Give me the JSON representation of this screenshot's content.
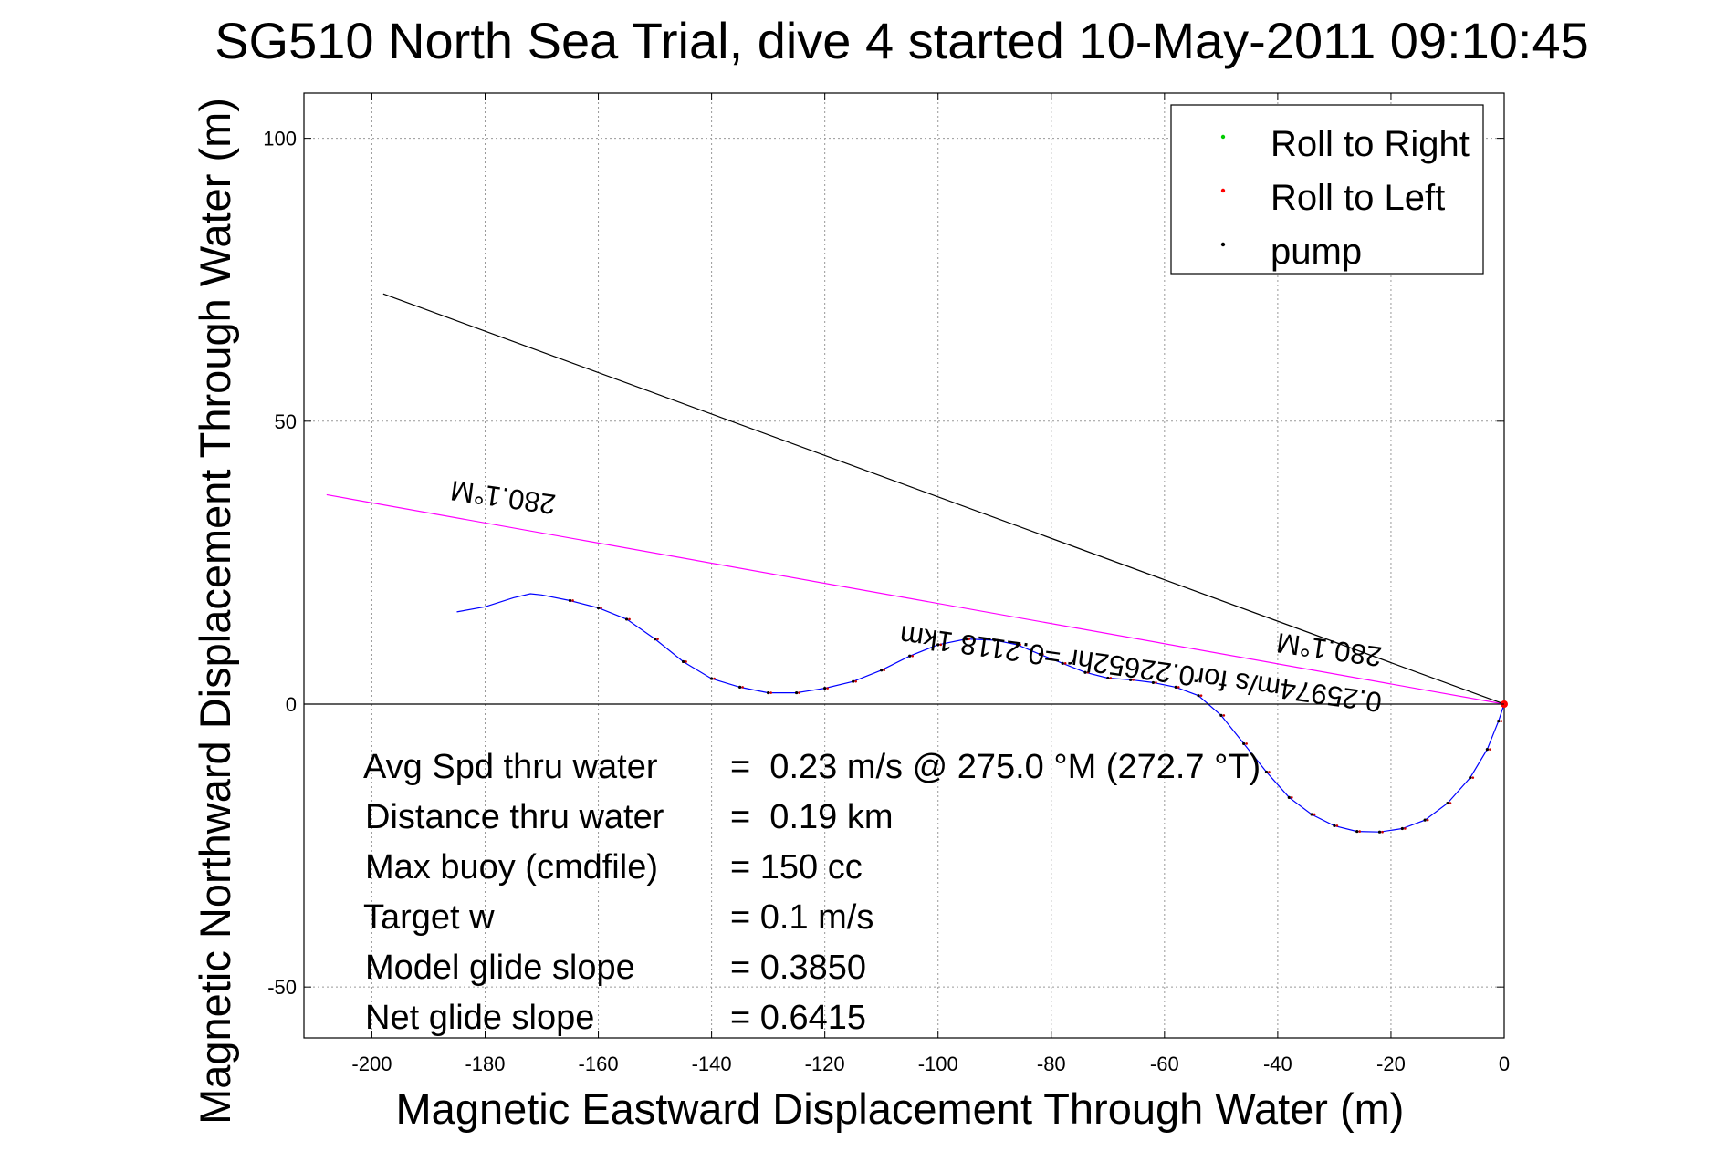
{
  "chart_data": {
    "type": "line",
    "title": "SG510 North Sea Trial, dive 4 started 10-May-2011 09:10:45",
    "xlabel": "Magnetic Eastward Displacement Through Water (m)",
    "ylabel": "Magnetic Northward Displacement Through Water (m)",
    "xlim": [
      -212,
      0
    ],
    "ylim": [
      -59,
      108
    ],
    "xticks": [
      -200,
      -180,
      -160,
      -140,
      -120,
      -100,
      -80,
      -60,
      -40,
      -20,
      0
    ],
    "yticks": [
      -50,
      0,
      50,
      100
    ],
    "xtick_labels": [
      "-200",
      "-180",
      "-160",
      "-140",
      "-120",
      "-100",
      "-80",
      "-60",
      "-40",
      "-20",
      "0"
    ],
    "ytick_labels": [
      "-50",
      "0",
      "50",
      "100"
    ],
    "grid": true,
    "legend_position": "top-right",
    "legend": [
      {
        "label": "Roll to Right",
        "color": "#00cc00"
      },
      {
        "label": "Roll to Left",
        "color": "#ff0000"
      },
      {
        "label": "pump",
        "color": "#000000"
      }
    ],
    "series": [
      {
        "type": "track",
        "color": "#0000ff",
        "points": [
          [
            0,
            0
          ],
          [
            -1,
            -3
          ],
          [
            -3,
            -8
          ],
          [
            -6,
            -13
          ],
          [
            -10,
            -17.5
          ],
          [
            -14,
            -20.5
          ],
          [
            -18,
            -22
          ],
          [
            -22,
            -22.6
          ],
          [
            -26,
            -22.5
          ],
          [
            -30,
            -21.5
          ],
          [
            -34,
            -19.5
          ],
          [
            -38,
            -16.5
          ],
          [
            -42,
            -12
          ],
          [
            -46,
            -7
          ],
          [
            -50,
            -2
          ],
          [
            -54,
            1.5
          ],
          [
            -58,
            3
          ],
          [
            -62,
            3.8
          ],
          [
            -66,
            4.3
          ],
          [
            -70,
            4.6
          ],
          [
            -74,
            5.6
          ],
          [
            -78,
            7.2
          ],
          [
            -82,
            8.8
          ],
          [
            -86,
            10.5
          ],
          [
            -90,
            11.3
          ],
          [
            -95,
            11.5
          ],
          [
            -100,
            10.5
          ],
          [
            -105,
            8.5
          ],
          [
            -110,
            6
          ],
          [
            -115,
            4
          ],
          [
            -120,
            2.8
          ],
          [
            -125,
            2
          ],
          [
            -130,
            2
          ],
          [
            -135,
            3
          ],
          [
            -140,
            4.5
          ],
          [
            -145,
            7.5
          ],
          [
            -150,
            11.5
          ],
          [
            -155,
            15
          ],
          [
            -160,
            17
          ],
          [
            -165,
            18.3
          ],
          [
            -170,
            19.3
          ],
          [
            -172,
            19.5
          ],
          [
            -175,
            18.8
          ],
          [
            -180,
            17.2
          ],
          [
            -185,
            16.3
          ]
        ]
      },
      {
        "type": "heading",
        "color": "#ff00ff",
        "x": [
          0,
          -208
        ],
        "y": [
          0,
          37
        ]
      },
      {
        "type": "displacement",
        "color": "#000000",
        "x": [
          0,
          -198
        ],
        "y": [
          0,
          72.5
        ]
      },
      {
        "type": "zero-line",
        "color": "#000000",
        "x": [
          0,
          -212
        ],
        "y": [
          0,
          0
        ]
      }
    ],
    "ship_marker": {
      "x": 0,
      "y": 0,
      "color": "#ff0000"
    },
    "annotations": {
      "heading_left": "280.1°M",
      "heading_right": "280.1°M",
      "speed_label": "0.25974m/s for0.22652hr =0.2118 1km"
    },
    "stats": [
      {
        "label": "Avg Spd thru water",
        "value": "=  0.23 m/s @ 275.0 °M (272.7 °T)"
      },
      {
        "label": "Distance thru water",
        "value": "=  0.19 km"
      },
      {
        "label": "Max buoy (cmdfile)",
        "value": "= 150 cc"
      },
      {
        "label": "Target w",
        "value": "= 0.1 m/s"
      },
      {
        "label": "Model glide slope",
        "value": "= 0.3850"
      },
      {
        "label": "Net glide slope",
        "value": "= 0.6415"
      }
    ]
  }
}
